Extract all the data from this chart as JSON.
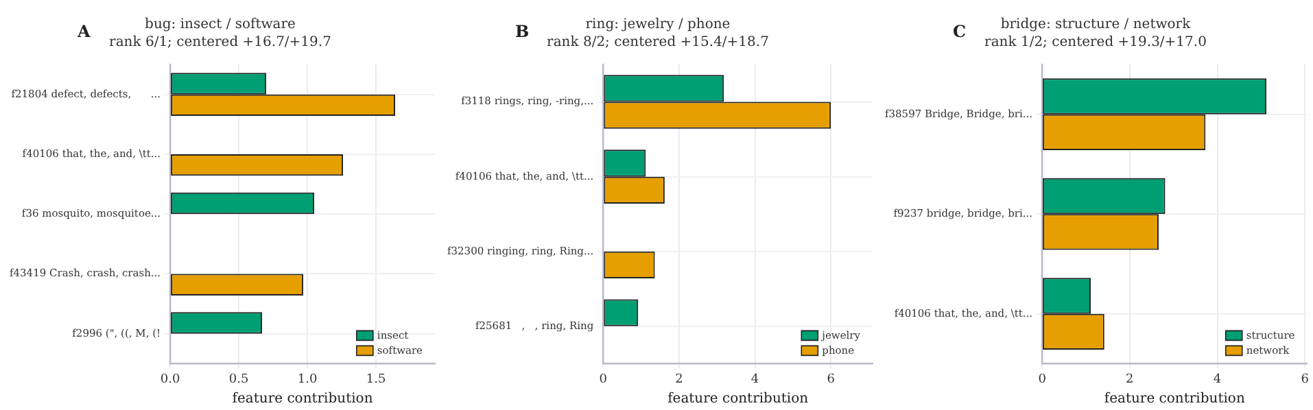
{
  "chart_data": [
    {
      "type": "bar",
      "orientation": "horizontal",
      "title": "bug: insect / software",
      "subtitle": "rank 6/1; centered +16.7/+19.7",
      "annotations": [
        "A"
      ],
      "xlabel": "feature contribution",
      "categories": [
        "f21804 defect, defects,      ...",
        "f40106 that, the, and, \\tt...",
        "f36 mosquito, mosquitoe...",
        "f43419 Crash, crash, crash...",
        "f2996 (\", ((, M, (!"
      ],
      "series": [
        {
          "name": "insect",
          "color": "#009e73",
          "values": [
            0.7,
            0,
            1.05,
            0,
            0.67
          ]
        },
        {
          "name": "software",
          "color": "#e69f00",
          "values": [
            1.64,
            1.26,
            0,
            0.97,
            0
          ]
        }
      ],
      "xlim": [
        0,
        1.93
      ],
      "xticks": [
        {
          "value": 0,
          "label": "0.0"
        },
        {
          "value": 0.5,
          "label": "0.5"
        },
        {
          "value": 1,
          "label": "1.0"
        },
        {
          "value": 1.5,
          "label": "1.5"
        }
      ],
      "grid": true,
      "legend": "bottom right"
    },
    {
      "type": "bar",
      "orientation": "horizontal",
      "title": "ring: jewelry / phone",
      "subtitle": "rank 8/2; centered +15.4/+18.7",
      "annotations": [
        "B"
      ],
      "xlabel": "feature contribution",
      "categories": [
        "f3118 rings, ring, -ring,...",
        "f40106 that, the, and, \\tt...",
        "f32300 ringing, ring, Ring...",
        "f25681   ,   , ring, Ring"
      ],
      "series": [
        {
          "name": "jewelry",
          "color": "#009e73",
          "values": [
            3.18,
            1.12,
            0,
            0.92
          ]
        },
        {
          "name": "phone",
          "color": "#e69f00",
          "values": [
            6.0,
            1.62,
            1.36,
            0
          ]
        }
      ],
      "xlim": [
        0,
        7.1
      ],
      "xticks": [
        0,
        2,
        4,
        6
      ],
      "grid": true,
      "legend": "bottom right"
    },
    {
      "type": "bar",
      "orientation": "horizontal",
      "title": "bridge: structure / network",
      "subtitle": "rank 1/2; centered +19.3/+17.0",
      "annotations": [
        "C"
      ],
      "xlabel": "feature contribution",
      "categories": [
        "f38597 Bridge, Bridge, bri...",
        "f9237 bridge, bridge, bri...",
        "f40106 that, the, and, \\tt..."
      ],
      "series": [
        {
          "name": "structure",
          "color": "#009e73",
          "values": [
            5.12,
            2.81,
            1.11
          ]
        },
        {
          "name": "network",
          "color": "#e69f00",
          "values": [
            3.73,
            2.66,
            1.42
          ]
        }
      ],
      "xlim": [
        0,
        6.05
      ],
      "xticks": [
        0,
        2,
        4,
        6
      ],
      "grid": true,
      "legend": "bottom right"
    }
  ]
}
